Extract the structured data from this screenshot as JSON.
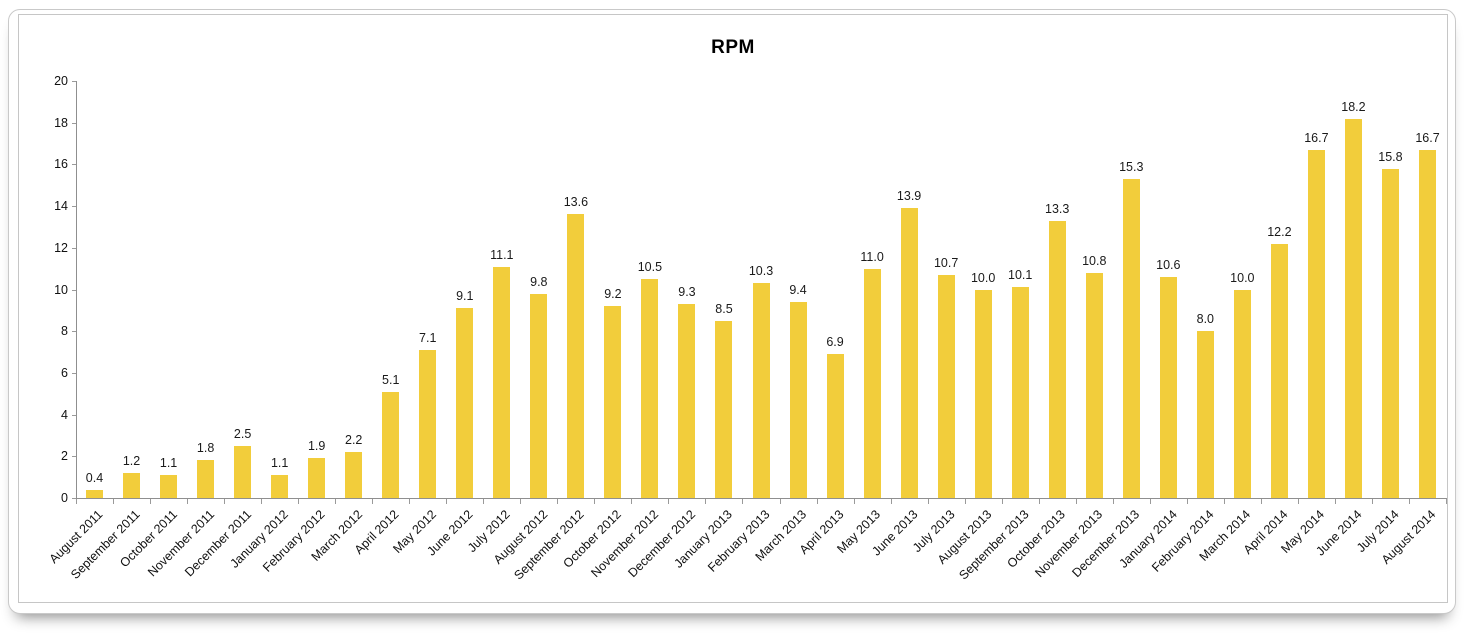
{
  "chart_data": {
    "type": "bar",
    "title": "RPM",
    "categories": [
      "August 2011",
      "September 2011",
      "October 2011",
      "November 2011",
      "December 2011",
      "January 2012",
      "February 2012",
      "March 2012",
      "April 2012",
      "May 2012",
      "June 2012",
      "July 2012",
      "August 2012",
      "September 2012",
      "October 2012",
      "November 2012",
      "December 2012",
      "January 2013",
      "February 2013",
      "March 2013",
      "April 2013",
      "May 2013",
      "June 2013",
      "July 2013",
      "August 2013",
      "September 2013",
      "October 2013",
      "November 2013",
      "December 2013",
      "January 2014",
      "February 2014",
      "March 2014",
      "April 2014",
      "May 2014",
      "June 2014",
      "July 2014",
      "August 2014"
    ],
    "values": [
      0.4,
      1.2,
      1.1,
      1.8,
      2.5,
      1.1,
      1.9,
      2.2,
      5.1,
      7.1,
      9.1,
      11.1,
      9.8,
      13.6,
      9.2,
      10.5,
      9.3,
      8.5,
      10.3,
      9.4,
      6.9,
      11.0,
      13.9,
      10.7,
      10.0,
      10.1,
      13.3,
      10.8,
      15.3,
      10.6,
      8.0,
      10.0,
      12.2,
      16.7,
      18.2,
      15.8,
      16.7
    ],
    "value_labels": [
      "0.4",
      "1.2",
      "1.1",
      "1.8",
      "2.5",
      "1.1",
      "1.9",
      "2.2",
      "5.1",
      "7.1",
      "9.1",
      "11.1",
      "9.8",
      "13.6",
      "9.2",
      "10.5",
      "9.3",
      "8.5",
      "10.3",
      "9.4",
      "6.9",
      "11.0",
      "13.9",
      "10.7",
      "10.0",
      "10.1",
      "13.3",
      "10.8",
      "15.3",
      "10.6",
      "8.0",
      "10.0",
      "12.2",
      "16.7",
      "18.2",
      "15.8",
      "16.7"
    ],
    "xlabel": "",
    "ylabel": "",
    "ylim": [
      0,
      20
    ],
    "yticks": [
      0,
      2,
      4,
      6,
      8,
      10,
      12,
      14,
      16,
      18,
      20
    ],
    "grid": false,
    "legend": false,
    "bar_color": "#F2CD3B"
  }
}
